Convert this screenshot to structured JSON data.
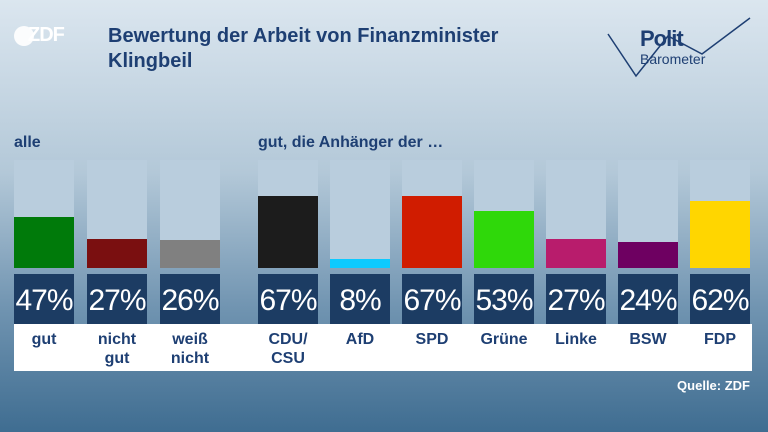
{
  "header": {
    "logo_text": "ZDF",
    "title": "Bewertung der Arbeit von Finanzminister Klingbeil",
    "brand_line1": "Polit",
    "brand_line2": "Barometer"
  },
  "groups": {
    "left_label": "alle",
    "right_label": "gut, die Anhänger der …"
  },
  "source": "Quelle: ZDF",
  "chart_data": {
    "type": "bar",
    "title": "Bewertung der Arbeit von Finanzminister Klingbeil",
    "ylim": [
      0,
      100
    ],
    "grid": false,
    "bars": [
      {
        "category": "gut",
        "value": 47,
        "label": "47%",
        "color": "#007a0a"
      },
      {
        "category": "nicht\ngut",
        "value": 27,
        "label": "27%",
        "color": "#7a0f10"
      },
      {
        "category": "weiß\nnicht",
        "value": 26,
        "label": "26%",
        "color": "#808080"
      },
      {
        "category": "CDU/\nCSU",
        "value": 67,
        "label": "67%",
        "color": "#1c1c1c"
      },
      {
        "category": "AfD",
        "value": 8,
        "label": "8%",
        "color": "#0ccaff"
      },
      {
        "category": "SPD",
        "value": 67,
        "label": "67%",
        "color": "#d01c00"
      },
      {
        "category": "Grüne",
        "value": 53,
        "label": "53%",
        "color": "#2fd80a"
      },
      {
        "category": "Linke",
        "value": 27,
        "label": "27%",
        "color": "#b81c6c"
      },
      {
        "category": "BSW",
        "value": 24,
        "label": "24%",
        "color": "#6e0061"
      },
      {
        "category": "FDP",
        "value": 62,
        "label": "62%",
        "color": "#ffd600"
      }
    ]
  }
}
